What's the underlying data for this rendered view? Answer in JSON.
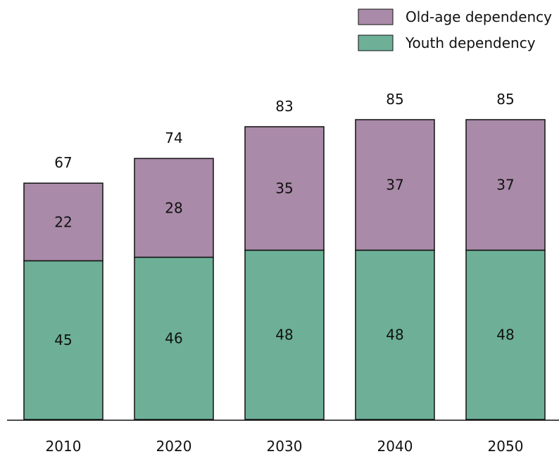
{
  "chart_data": {
    "type": "bar",
    "stacked": true,
    "categories": [
      "2010",
      "2020",
      "2030",
      "2040",
      "2050"
    ],
    "series": [
      {
        "name": "Youth dependency",
        "values": [
          45,
          46,
          48,
          48,
          48
        ],
        "color": "#6db097"
      },
      {
        "name": "Old-age dependency",
        "values": [
          22,
          28,
          35,
          37,
          37
        ],
        "color": "#a98aa8"
      }
    ],
    "totals": [
      "67",
      "74",
      "83",
      "85",
      "85"
    ],
    "segment_labels": [
      [
        "45",
        "46",
        "48",
        "48",
        "48"
      ],
      [
        "22",
        "28",
        "35",
        "37",
        "37"
      ]
    ],
    "ylim": [
      0,
      85
    ],
    "grid": false,
    "legend_position": "top-right",
    "legend_order": [
      1,
      0
    ],
    "segment_label_colors": [
      "#111111",
      "#ffffff"
    ]
  }
}
